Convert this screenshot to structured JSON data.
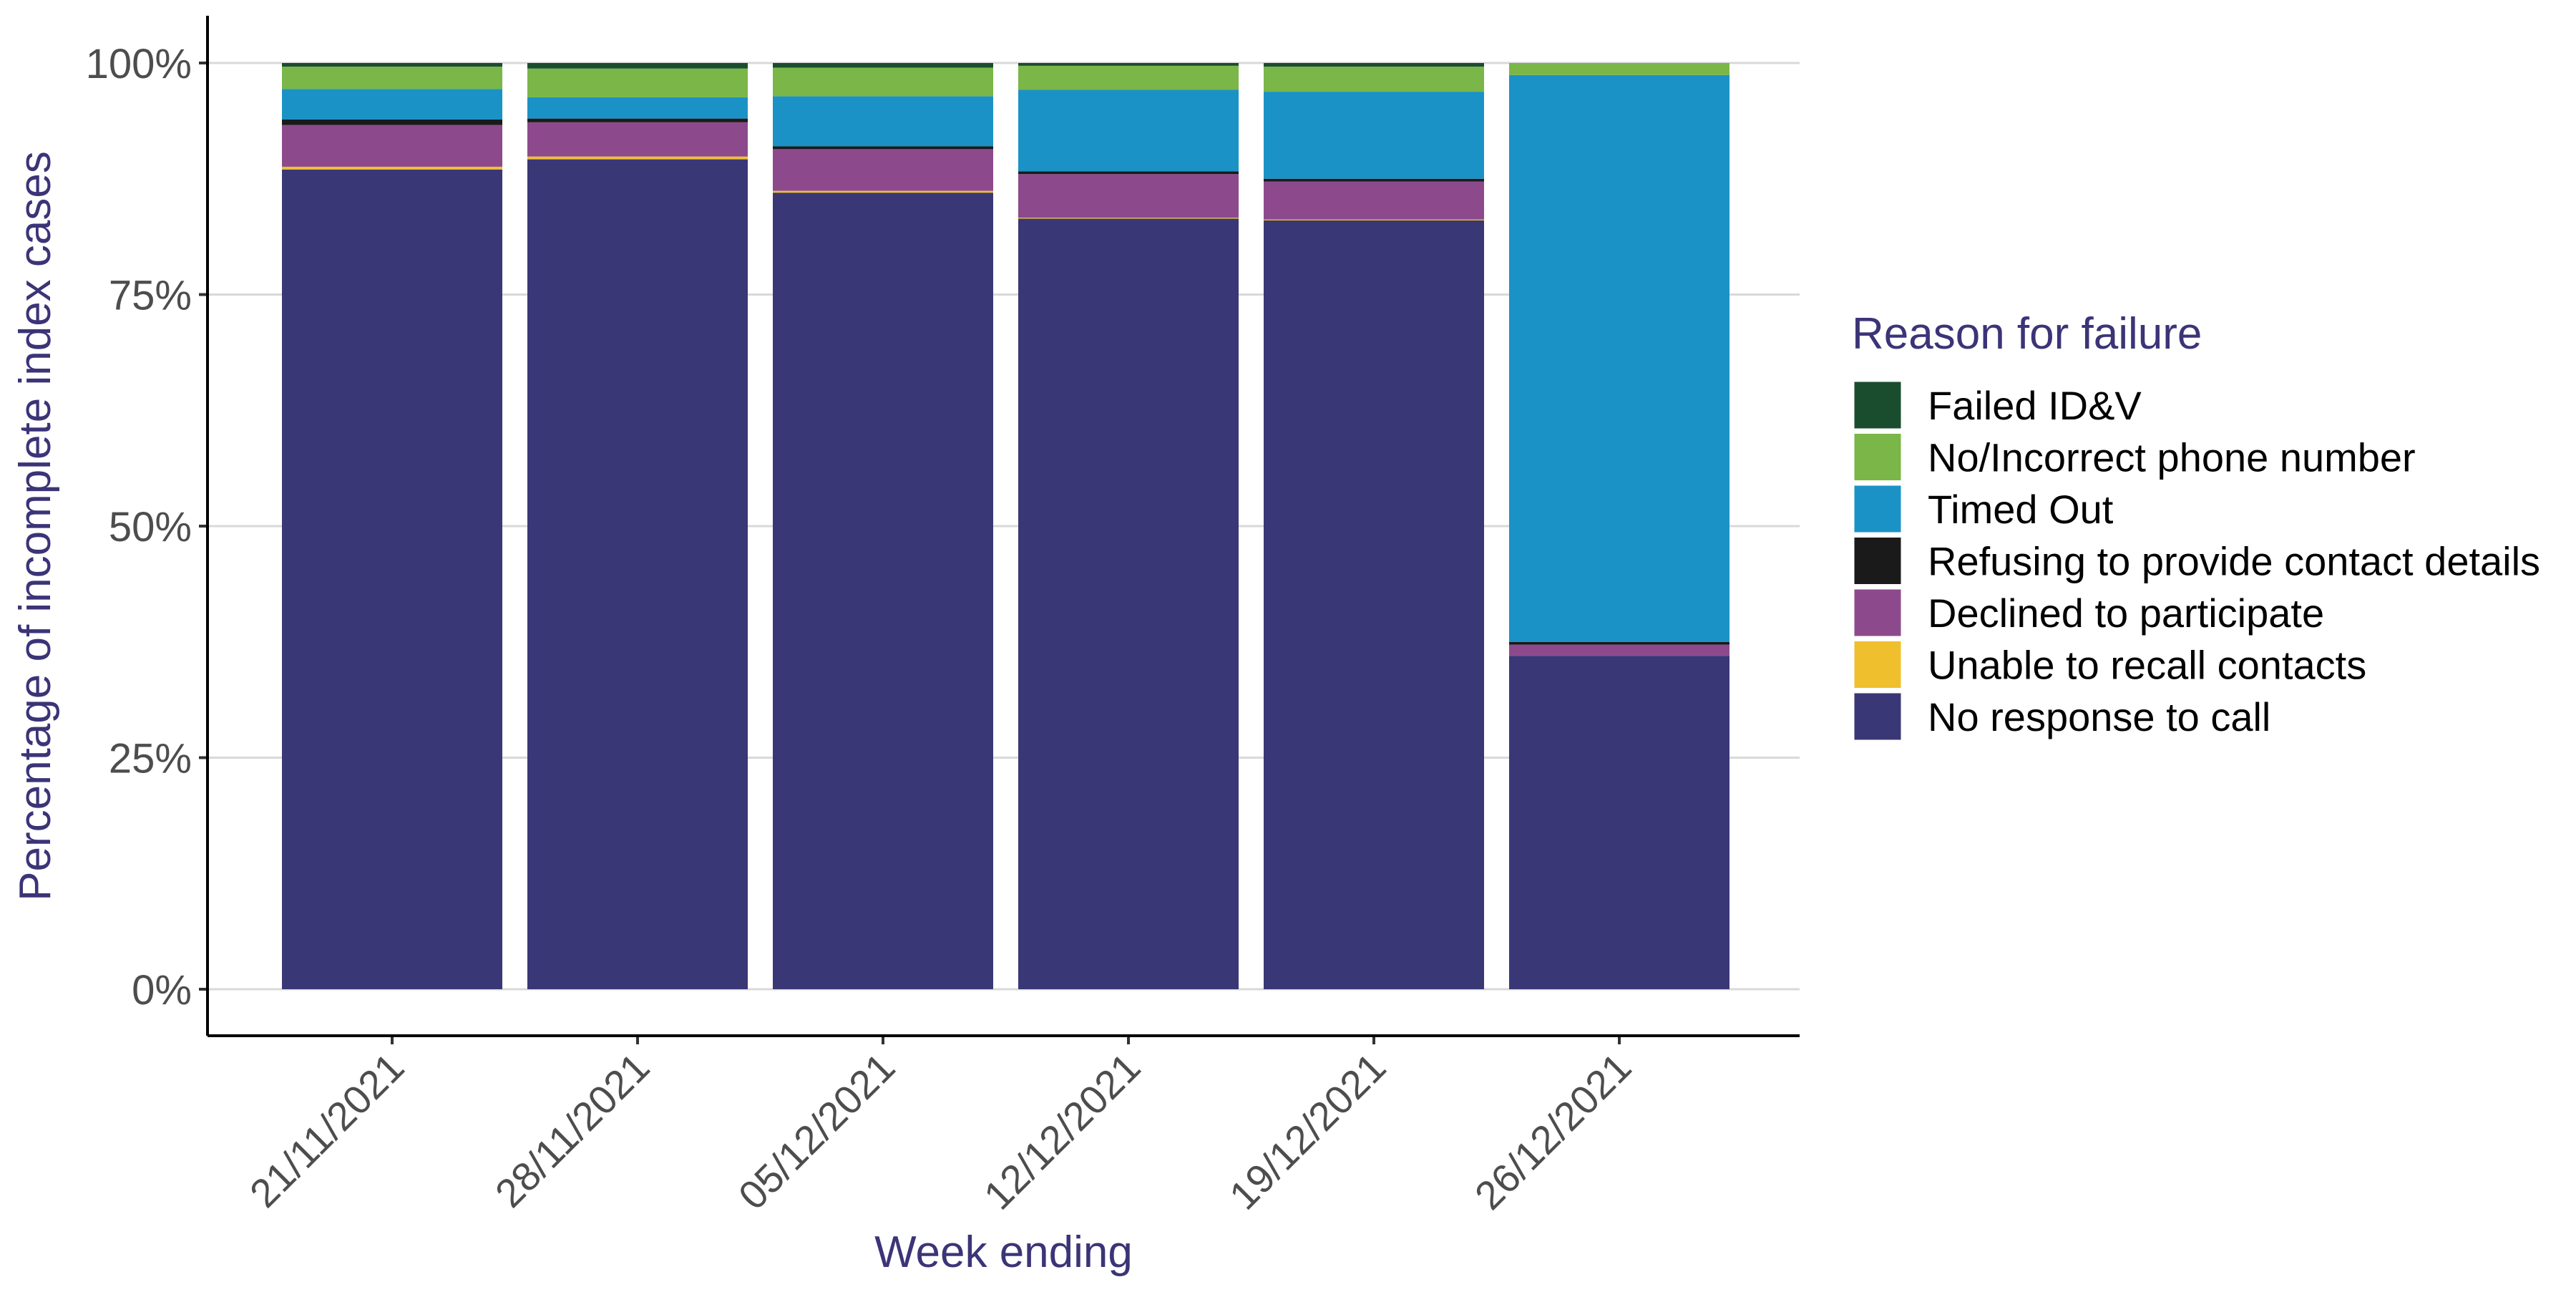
{
  "chart_data": {
    "type": "bar",
    "stacked": true,
    "percent": true,
    "title": "",
    "xlabel": "Week ending",
    "ylabel": "Percentage of incomplete index cases",
    "ylim": [
      0,
      100
    ],
    "yticks": [
      "0%",
      "25%",
      "50%",
      "75%",
      "100%"
    ],
    "categories": [
      "21/11/2021",
      "28/11/2021",
      "05/12/2021",
      "12/12/2021",
      "19/12/2021",
      "26/12/2021"
    ],
    "legend": {
      "title": "Reason for failure",
      "position": "right"
    },
    "grid": "horizontal major",
    "colors": {
      "axis_title": "#3b3477",
      "legend_title": "#3b3477",
      "gridline": "#d9d9d9",
      "axis_line": "#000000",
      "tick_label": "#4d4d4d"
    },
    "series": [
      {
        "name": "No response to call",
        "color": "#3a3776",
        "values": [
          88.5,
          89.6,
          86.0,
          83.2,
          83.0,
          36.0
        ]
      },
      {
        "name": "Unable to recall contacts",
        "color": "#f0bf2e",
        "values": [
          0.3,
          0.3,
          0.2,
          0.1,
          0.1,
          0.0
        ]
      },
      {
        "name": "Declined to participate",
        "color": "#8c4a8c",
        "values": [
          4.5,
          3.7,
          4.5,
          4.7,
          4.1,
          1.2
        ]
      },
      {
        "name": "Refusing to provide contact details",
        "color": "#1a1a1a",
        "values": [
          0.6,
          0.4,
          0.3,
          0.3,
          0.3,
          0.3
        ]
      },
      {
        "name": "Timed Out",
        "color": "#1b92c6",
        "values": [
          3.3,
          2.3,
          5.4,
          8.8,
          9.4,
          61.2
        ]
      },
      {
        "name": "No/Incorrect phone number",
        "color": "#7ab648",
        "values": [
          2.4,
          3.1,
          3.1,
          2.6,
          2.7,
          1.3
        ]
      },
      {
        "name": "Failed ID&V",
        "color": "#1a4d2e",
        "values": [
          0.4,
          0.6,
          0.5,
          0.3,
          0.4,
          0.0
        ]
      }
    ],
    "legend_order": [
      "Failed ID&V",
      "No/Incorrect phone number",
      "Timed Out",
      "Refusing to provide contact details",
      "Declined to participate",
      "Unable to recall contacts",
      "No response to call"
    ]
  }
}
